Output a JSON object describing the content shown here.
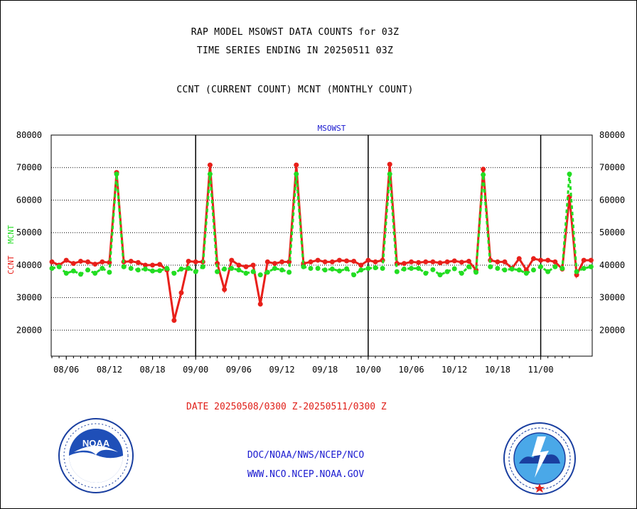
{
  "titles": {
    "line1": "RAP MODEL MSOWST DATA COUNTS for 03Z",
    "line2": "TIME SERIES ENDING IN 20250511 03Z",
    "line3": "CCNT (CURRENT COUNT) MCNT (MONTHLY COUNT)"
  },
  "date_range": "DATE 20250508/0300 Z-20250511/0300 Z",
  "footer": {
    "line1": "DOC/NOAA/NWS/NCEP/NCO",
    "line2": "WWW.NCO.NCEP.NOAA.GOV"
  },
  "logos": {
    "left": "noaa-logo",
    "right": "national-weather-service-logo",
    "nws_ring_text": "NATIONAL WEATHER SERVICE"
  },
  "colors": {
    "ccnt": "#e8201a",
    "mcnt": "#22dd22",
    "axis": "#000000",
    "subtitle": "#1a1ad0"
  },
  "chart_data": {
    "type": "line",
    "title": "MSOWST",
    "ylabel_left": [
      "CCNT",
      "MCNT"
    ],
    "ylim": [
      12000,
      80000
    ],
    "y_ticks": [
      20000,
      30000,
      40000,
      50000,
      60000,
      70000,
      80000
    ],
    "x_tick_labels": [
      "08/06",
      "08/12",
      "08/18",
      "09/00",
      "09/06",
      "09/12",
      "09/18",
      "10/00",
      "10/06",
      "10/12",
      "10/18",
      "11/00"
    ],
    "x_range_hours": [
      0,
      216
    ],
    "day_boundaries": [
      "09/00",
      "10/00",
      "11/00"
    ],
    "grid": "dotted horizontal",
    "series": [
      {
        "name": "CCNT",
        "color": "#e8201a",
        "points": [
          [
            0,
            41000
          ],
          [
            3,
            40000
          ],
          [
            6,
            41500
          ],
          [
            9,
            40500
          ],
          [
            12,
            41200
          ],
          [
            15,
            41000
          ],
          [
            18,
            40300
          ],
          [
            21,
            41000
          ],
          [
            24,
            40800
          ],
          [
            27,
            68500
          ],
          [
            30,
            41000
          ],
          [
            33,
            41200
          ],
          [
            36,
            40800
          ],
          [
            39,
            40000
          ],
          [
            42,
            40000
          ],
          [
            45,
            40200
          ],
          [
            48,
            38500
          ],
          [
            51,
            23000
          ],
          [
            54,
            31500
          ],
          [
            57,
            41200
          ],
          [
            60,
            41000
          ],
          [
            63,
            41000
          ],
          [
            66,
            70800
          ],
          [
            69,
            40500
          ],
          [
            72,
            32500
          ],
          [
            75,
            41500
          ],
          [
            78,
            40000
          ],
          [
            81,
            39500
          ],
          [
            84,
            40000
          ],
          [
            87,
            28000
          ],
          [
            90,
            41000
          ],
          [
            93,
            40500
          ],
          [
            96,
            41000
          ],
          [
            99,
            41000
          ],
          [
            102,
            70800
          ],
          [
            105,
            40500
          ],
          [
            108,
            41000
          ],
          [
            111,
            41500
          ],
          [
            114,
            41000
          ],
          [
            117,
            41000
          ],
          [
            120,
            41500
          ],
          [
            123,
            41300
          ],
          [
            126,
            41200
          ],
          [
            129,
            40000
          ],
          [
            132,
            41500
          ],
          [
            135,
            41000
          ],
          [
            138,
            41500
          ],
          [
            141,
            71000
          ],
          [
            144,
            40500
          ],
          [
            147,
            40500
          ],
          [
            150,
            41000
          ],
          [
            153,
            40800
          ],
          [
            156,
            41000
          ],
          [
            159,
            41000
          ],
          [
            162,
            40700
          ],
          [
            165,
            41000
          ],
          [
            168,
            41300
          ],
          [
            171,
            40900
          ],
          [
            174,
            41200
          ],
          [
            177,
            38500
          ],
          [
            180,
            69500
          ],
          [
            183,
            41500
          ],
          [
            186,
            41000
          ],
          [
            189,
            41000
          ],
          [
            192,
            39000
          ],
          [
            195,
            42000
          ],
          [
            198,
            38500
          ],
          [
            201,
            42000
          ],
          [
            204,
            41500
          ],
          [
            207,
            41500
          ],
          [
            210,
            41000
          ],
          [
            213,
            38800
          ],
          [
            216,
            61000
          ],
          [
            219,
            37000
          ],
          [
            222,
            41500
          ],
          [
            225,
            41500
          ]
        ]
      },
      {
        "name": "MCNT",
        "color": "#22dd22",
        "points": [
          [
            0,
            39000
          ],
          [
            3,
            39500
          ],
          [
            6,
            37500
          ],
          [
            9,
            38200
          ],
          [
            12,
            37200
          ],
          [
            15,
            38500
          ],
          [
            18,
            37500
          ],
          [
            21,
            39000
          ],
          [
            24,
            37800
          ],
          [
            27,
            68000
          ],
          [
            30,
            39500
          ],
          [
            33,
            39000
          ],
          [
            36,
            38500
          ],
          [
            39,
            38800
          ],
          [
            42,
            38200
          ],
          [
            45,
            38300
          ],
          [
            48,
            39000
          ],
          [
            51,
            37500
          ],
          [
            54,
            38800
          ],
          [
            57,
            39000
          ],
          [
            60,
            38000
          ],
          [
            63,
            39500
          ],
          [
            66,
            68000
          ],
          [
            69,
            38000
          ],
          [
            72,
            38800
          ],
          [
            75,
            39000
          ],
          [
            78,
            38500
          ],
          [
            81,
            37500
          ],
          [
            84,
            38000
          ],
          [
            87,
            37000
          ],
          [
            90,
            37800
          ],
          [
            93,
            39000
          ],
          [
            96,
            38500
          ],
          [
            99,
            37800
          ],
          [
            102,
            68000
          ],
          [
            105,
            39500
          ],
          [
            108,
            39000
          ],
          [
            111,
            39000
          ],
          [
            114,
            38500
          ],
          [
            117,
            38800
          ],
          [
            120,
            38200
          ],
          [
            123,
            38900
          ],
          [
            126,
            37000
          ],
          [
            129,
            38500
          ],
          [
            132,
            39000
          ],
          [
            135,
            39200
          ],
          [
            138,
            39000
          ],
          [
            141,
            68000
          ],
          [
            144,
            38000
          ],
          [
            147,
            38800
          ],
          [
            150,
            39000
          ],
          [
            153,
            39000
          ],
          [
            156,
            37500
          ],
          [
            159,
            38600
          ],
          [
            162,
            37000
          ],
          [
            165,
            38000
          ],
          [
            168,
            38900
          ],
          [
            171,
            37500
          ],
          [
            174,
            39500
          ],
          [
            177,
            37800
          ],
          [
            180,
            67800
          ],
          [
            183,
            39500
          ],
          [
            186,
            39000
          ],
          [
            189,
            38500
          ],
          [
            192,
            38800
          ],
          [
            195,
            38500
          ],
          [
            198,
            37500
          ],
          [
            201,
            38500
          ],
          [
            204,
            39500
          ],
          [
            207,
            38000
          ],
          [
            210,
            39500
          ],
          [
            213,
            39000
          ],
          [
            216,
            68000
          ],
          [
            219,
            38000
          ],
          [
            222,
            39000
          ],
          [
            225,
            39500
          ]
        ]
      }
    ]
  }
}
